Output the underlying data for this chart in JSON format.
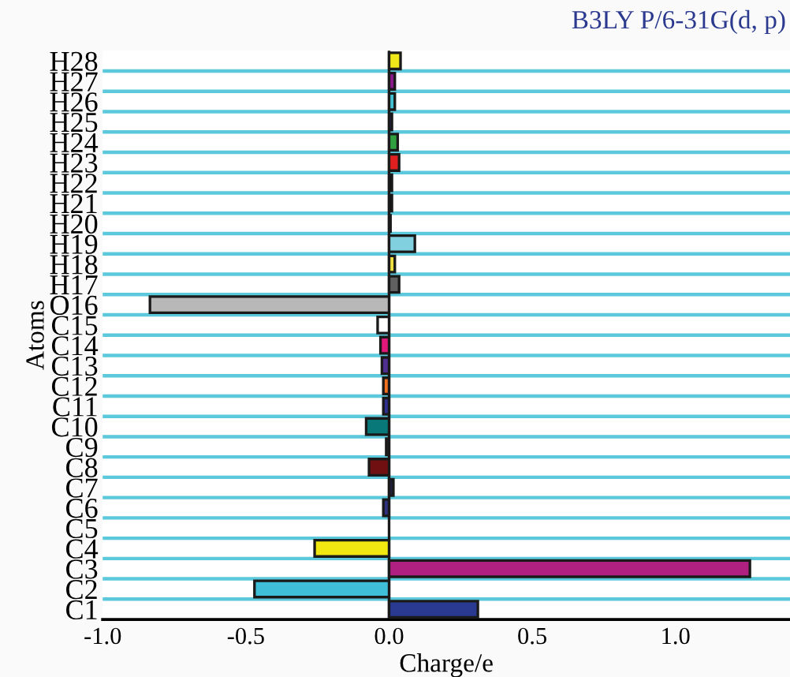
{
  "chart_data": {
    "type": "bar",
    "orientation": "horizontal",
    "title": "B3LY P/6-31G(d, p)",
    "xlabel": "Charge/e",
    "ylabel": "Atoms",
    "categories": [
      "H28",
      "H27",
      "H26",
      "H25",
      "H24",
      "H23",
      "H22",
      "H21",
      "H20",
      "H19",
      "H18",
      "H17",
      "O16",
      "C15",
      "C14",
      "C13",
      "C12",
      "C11",
      "C10",
      "C9",
      "C8",
      "C7",
      "C6",
      "C5",
      "C4",
      "C3",
      "C2",
      "C1"
    ],
    "values": [
      0.04,
      0.02,
      0.02,
      0.01,
      0.03,
      0.035,
      0.01,
      0.01,
      0.005,
      0.09,
      0.02,
      0.035,
      -0.835,
      -0.04,
      -0.03,
      -0.025,
      -0.02,
      -0.02,
      -0.08,
      -0.01,
      -0.07,
      0.015,
      -0.02,
      null,
      -0.26,
      1.26,
      -0.47,
      0.31
    ],
    "colors": [
      "#f0e818",
      "#8b1a8b",
      "#40c0d0",
      "#2a2a8a",
      "#30a040",
      "#e02020",
      "#000000",
      "#000000",
      "#000000",
      "#80d0e0",
      "#f0e040",
      "#606060",
      "#b8b8b8",
      "#ffffff",
      "#e0187a",
      "#503090",
      "#f07020",
      "#303090",
      "#087878",
      "#303030",
      "#701010",
      "#202040",
      "#303080",
      null,
      "#f0e810",
      "#b02080",
      "#40c0d8",
      "#2a3a90"
    ],
    "xlim": [
      -1.0,
      1.4
    ],
    "xticks": [
      {
        "value": -1.0,
        "label": "-1.0"
      },
      {
        "value": -0.5,
        "label": "-0.5"
      },
      {
        "value": 0.0,
        "label": "0.0"
      },
      {
        "value": 0.5,
        "label": "0.5"
      },
      {
        "value": 1.0,
        "label": "1.0"
      }
    ],
    "grid": "y"
  }
}
